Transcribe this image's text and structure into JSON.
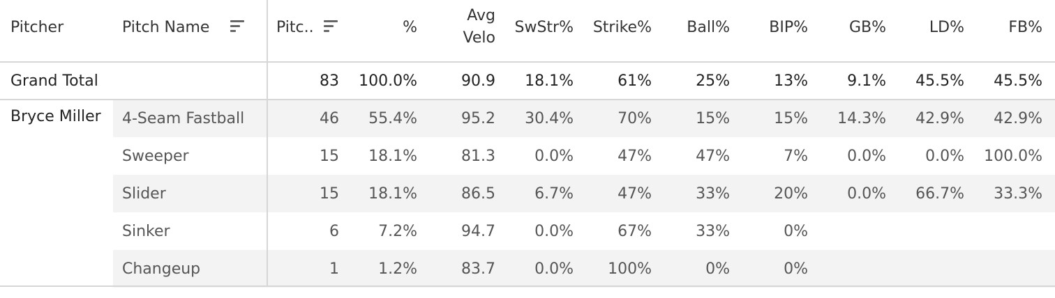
{
  "headers": {
    "pitcher": "Pitcher",
    "pitch_name": "Pitch Name",
    "pitches": "Pitc..",
    "pct": "%",
    "avg_velo_1": "Avg",
    "avg_velo_2": "Velo",
    "swstr": "SwStr%",
    "strike": "Strike%",
    "ball": "Ball%",
    "bip": "BIP%",
    "gb": "GB%",
    "ld": "LD%",
    "fb": "FB%"
  },
  "icons": {
    "sort_pitch_name": "sort-descending-icon",
    "sort_pitches": "sort-descending-icon"
  },
  "grand_total": {
    "label": "Grand Total",
    "pitches": "83",
    "pct": "100.0%",
    "avg_velo": "90.9",
    "swstr": "18.1%",
    "strike": "61%",
    "ball": "25%",
    "bip": "13%",
    "gb": "9.1%",
    "ld": "45.5%",
    "fb": "45.5%"
  },
  "pitcher_name": "Bryce Miller",
  "rows": [
    {
      "pitch_name": "4-Seam Fastball",
      "pitches": "46",
      "pct": "55.4%",
      "avg_velo": "95.2",
      "swstr": "30.4%",
      "strike": "70%",
      "ball": "15%",
      "bip": "15%",
      "gb": "14.3%",
      "ld": "42.9%",
      "fb": "42.9%"
    },
    {
      "pitch_name": "Sweeper",
      "pitches": "15",
      "pct": "18.1%",
      "avg_velo": "81.3",
      "swstr": "0.0%",
      "strike": "47%",
      "ball": "47%",
      "bip": "7%",
      "gb": "0.0%",
      "ld": "0.0%",
      "fb": "100.0%"
    },
    {
      "pitch_name": "Slider",
      "pitches": "15",
      "pct": "18.1%",
      "avg_velo": "86.5",
      "swstr": "6.7%",
      "strike": "47%",
      "ball": "33%",
      "bip": "20%",
      "gb": "0.0%",
      "ld": "66.7%",
      "fb": "33.3%"
    },
    {
      "pitch_name": "Sinker",
      "pitches": "6",
      "pct": "7.2%",
      "avg_velo": "94.7",
      "swstr": "0.0%",
      "strike": "67%",
      "ball": "33%",
      "bip": "0%",
      "gb": "",
      "ld": "",
      "fb": ""
    },
    {
      "pitch_name": "Changeup",
      "pitches": "1",
      "pct": "1.2%",
      "avg_velo": "83.7",
      "swstr": "0.0%",
      "strike": "100%",
      "ball": "0%",
      "bip": "0%",
      "gb": "",
      "ld": "",
      "fb": ""
    }
  ],
  "colors": {
    "band": "#f3f3f3",
    "rule": "#d6d6d6",
    "text": "#333333"
  }
}
